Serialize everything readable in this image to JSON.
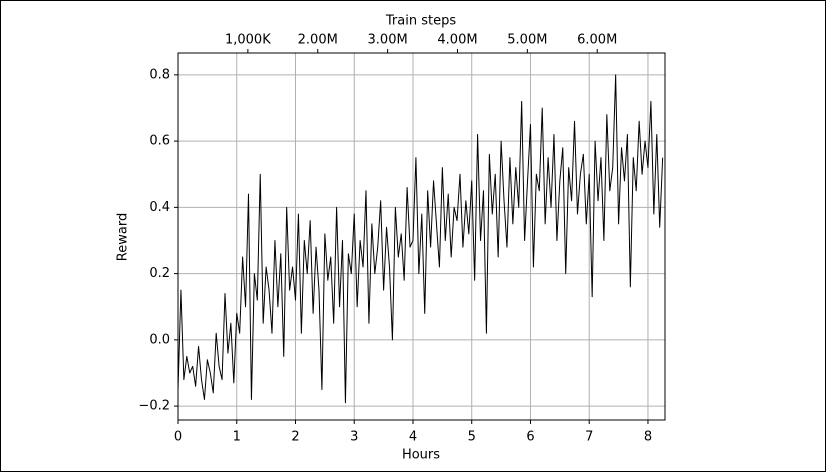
{
  "chart_data": {
    "type": "line",
    "xlabel": "Hours",
    "ylabel": "Reward",
    "x2label": "Train steps",
    "x": [
      0,
      0.05,
      0.1,
      0.15,
      0.2,
      0.25,
      0.3,
      0.35,
      0.4,
      0.45,
      0.5,
      0.55,
      0.6,
      0.65,
      0.7,
      0.75,
      0.8,
      0.85,
      0.9,
      0.95,
      1,
      1.05,
      1.1,
      1.15,
      1.2,
      1.25,
      1.3,
      1.35,
      1.4,
      1.45,
      1.5,
      1.55,
      1.6,
      1.65,
      1.7,
      1.75,
      1.8,
      1.85,
      1.9,
      1.95,
      2,
      2.05,
      2.1,
      2.15,
      2.2,
      2.25,
      2.3,
      2.35,
      2.4,
      2.45,
      2.5,
      2.55,
      2.6,
      2.65,
      2.7,
      2.75,
      2.8,
      2.85,
      2.9,
      2.95,
      3,
      3.05,
      3.1,
      3.15,
      3.2,
      3.25,
      3.3,
      3.35,
      3.4,
      3.45,
      3.5,
      3.55,
      3.6,
      3.65,
      3.7,
      3.75,
      3.8,
      3.85,
      3.9,
      3.95,
      4,
      4.05,
      4.1,
      4.15,
      4.2,
      4.25,
      4.3,
      4.35,
      4.4,
      4.45,
      4.5,
      4.55,
      4.6,
      4.65,
      4.7,
      4.75,
      4.8,
      4.85,
      4.9,
      4.95,
      5,
      5.05,
      5.1,
      5.15,
      5.2,
      5.25,
      5.3,
      5.35,
      5.4,
      5.45,
      5.5,
      5.55,
      5.6,
      5.65,
      5.7,
      5.75,
      5.8,
      5.85,
      5.9,
      5.95,
      6,
      6.05,
      6.1,
      6.15,
      6.2,
      6.25,
      6.3,
      6.35,
      6.4,
      6.45,
      6.5,
      6.55,
      6.6,
      6.65,
      6.7,
      6.75,
      6.8,
      6.85,
      6.9,
      6.95,
      7,
      7.05,
      7.1,
      7.15,
      7.2,
      7.25,
      7.3,
      7.35,
      7.4,
      7.45,
      7.5,
      7.55,
      7.6,
      7.65,
      7.7,
      7.75,
      7.8,
      7.85,
      7.9,
      7.95,
      8,
      8.05,
      8.1,
      8.15,
      8.2,
      8.25
    ],
    "series": [
      {
        "name": "Reward",
        "color": "#000000",
        "values": [
          -0.15,
          0.15,
          -0.12,
          -0.05,
          -0.1,
          -0.08,
          -0.14,
          -0.02,
          -0.12,
          -0.18,
          -0.06,
          -0.1,
          -0.16,
          0.02,
          -0.08,
          -0.12,
          0.14,
          -0.04,
          0.05,
          -0.13,
          0.08,
          0.02,
          0.25,
          0.1,
          0.44,
          -0.18,
          0.2,
          0.12,
          0.5,
          0.05,
          0.22,
          0.15,
          0.02,
          0.3,
          0.1,
          0.26,
          -0.05,
          0.4,
          0.15,
          0.22,
          0.12,
          0.38,
          0.02,
          0.3,
          0.2,
          0.36,
          0.08,
          0.28,
          0.15,
          -0.15,
          0.32,
          0.18,
          0.25,
          0.05,
          0.4,
          0.1,
          0.3,
          -0.19,
          0.26,
          0.2,
          0.38,
          0.1,
          0.3,
          0.22,
          0.45,
          0.05,
          0.35,
          0.2,
          0.28,
          0.42,
          0.15,
          0.34,
          0.22,
          0.0,
          0.4,
          0.25,
          0.32,
          0.18,
          0.46,
          0.28,
          0.3,
          0.55,
          0.2,
          0.38,
          0.08,
          0.45,
          0.28,
          0.48,
          0.35,
          0.22,
          0.52,
          0.3,
          0.44,
          0.25,
          0.4,
          0.36,
          0.5,
          0.28,
          0.42,
          0.32,
          0.48,
          0.18,
          0.62,
          0.3,
          0.45,
          0.02,
          0.56,
          0.38,
          0.5,
          0.25,
          0.6,
          0.42,
          0.28,
          0.55,
          0.35,
          0.52,
          0.4,
          0.72,
          0.3,
          0.48,
          0.65,
          0.22,
          0.5,
          0.45,
          0.7,
          0.35,
          0.55,
          0.4,
          0.62,
          0.3,
          0.48,
          0.58,
          0.2,
          0.52,
          0.42,
          0.66,
          0.38,
          0.5,
          0.56,
          0.35,
          0.5,
          0.13,
          0.6,
          0.42,
          0.55,
          0.3,
          0.68,
          0.45,
          0.52,
          0.8,
          0.35,
          0.58,
          0.48,
          0.62,
          0.16,
          0.55,
          0.45,
          0.66,
          0.5,
          0.6,
          0.52,
          0.72,
          0.38,
          0.62,
          0.34,
          0.55
        ]
      }
    ],
    "xlim": [
      0,
      8.29
    ],
    "xticks": [
      0,
      1,
      2,
      3,
      4,
      5,
      6,
      7,
      8
    ],
    "ylim": [
      -0.242,
      0.866
    ],
    "yticks": [
      {
        "value": -0.2,
        "label": "−0.2"
      },
      {
        "value": 0,
        "label": "0.0"
      },
      0.2,
      0.4,
      0.6,
      0.8
    ],
    "x2lim": [
      0,
      6970000
    ],
    "x2ticks": [
      {
        "value": 1000000,
        "label": "1,000K"
      },
      {
        "value": 2000000,
        "label": "2.00M"
      },
      {
        "value": 3000000,
        "label": "3.00M"
      },
      {
        "value": 4000000,
        "label": "4.00M"
      },
      {
        "value": 5000000,
        "label": "5.00M"
      },
      {
        "value": 6000000,
        "label": "6.00M"
      }
    ],
    "grid": true
  }
}
